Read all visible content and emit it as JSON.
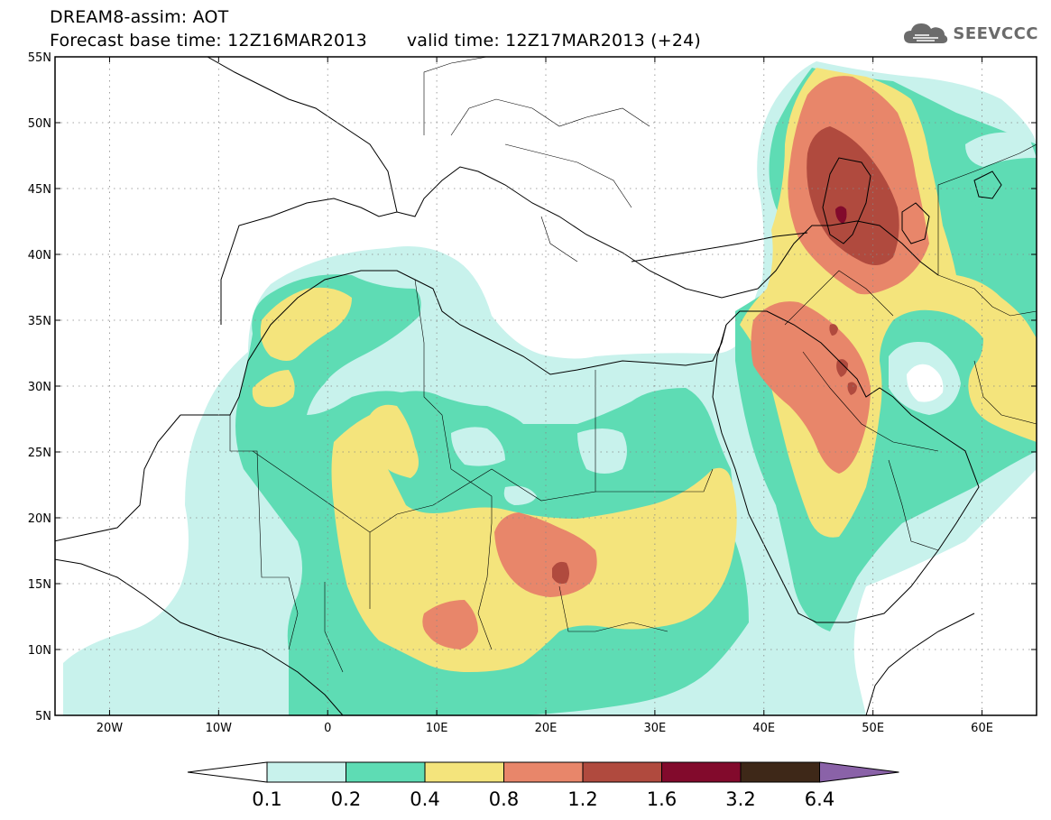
{
  "title": {
    "line1": "DREAM8-assim: AOT",
    "base_time": "Forecast base time: 12Z16MAR2013",
    "valid_time": "valid time: 12Z17MAR2013 (+24)"
  },
  "logo": {
    "text": "SEEVCCC",
    "icon": "cloud-logo-icon",
    "color": "#6b6b6b"
  },
  "axes": {
    "lon_ticks": [
      {
        "value": -20,
        "label": "20W"
      },
      {
        "value": -10,
        "label": "10W"
      },
      {
        "value": 0,
        "label": "0"
      },
      {
        "value": 10,
        "label": "10E"
      },
      {
        "value": 20,
        "label": "20E"
      },
      {
        "value": 30,
        "label": "30E"
      },
      {
        "value": 40,
        "label": "40E"
      },
      {
        "value": 50,
        "label": "50E"
      },
      {
        "value": 60,
        "label": "60E"
      }
    ],
    "lat_ticks": [
      {
        "value": 55,
        "label": "55N"
      },
      {
        "value": 50,
        "label": "50N"
      },
      {
        "value": 45,
        "label": "45N"
      },
      {
        "value": 40,
        "label": "40N"
      },
      {
        "value": 35,
        "label": "35N"
      },
      {
        "value": 30,
        "label": "30N"
      },
      {
        "value": 25,
        "label": "25N"
      },
      {
        "value": 20,
        "label": "20N"
      },
      {
        "value": 15,
        "label": "15N"
      },
      {
        "value": 10,
        "label": "10N"
      },
      {
        "value": 5,
        "label": "5N"
      }
    ],
    "lon_range": [
      -25,
      65
    ],
    "lat_range": [
      5,
      55
    ]
  },
  "colorbar": {
    "labels": [
      "0.1",
      "0.2",
      "0.4",
      "0.8",
      "1.2",
      "1.6",
      "3.2",
      "6.4"
    ],
    "colors": [
      "#c8f2ec",
      "#5edcb4",
      "#f4e47c",
      "#e8866a",
      "#b04a3e",
      "#820a2c",
      "#3e2818"
    ],
    "over_color": "#8a62a8",
    "under_color": "#ffffff"
  }
}
